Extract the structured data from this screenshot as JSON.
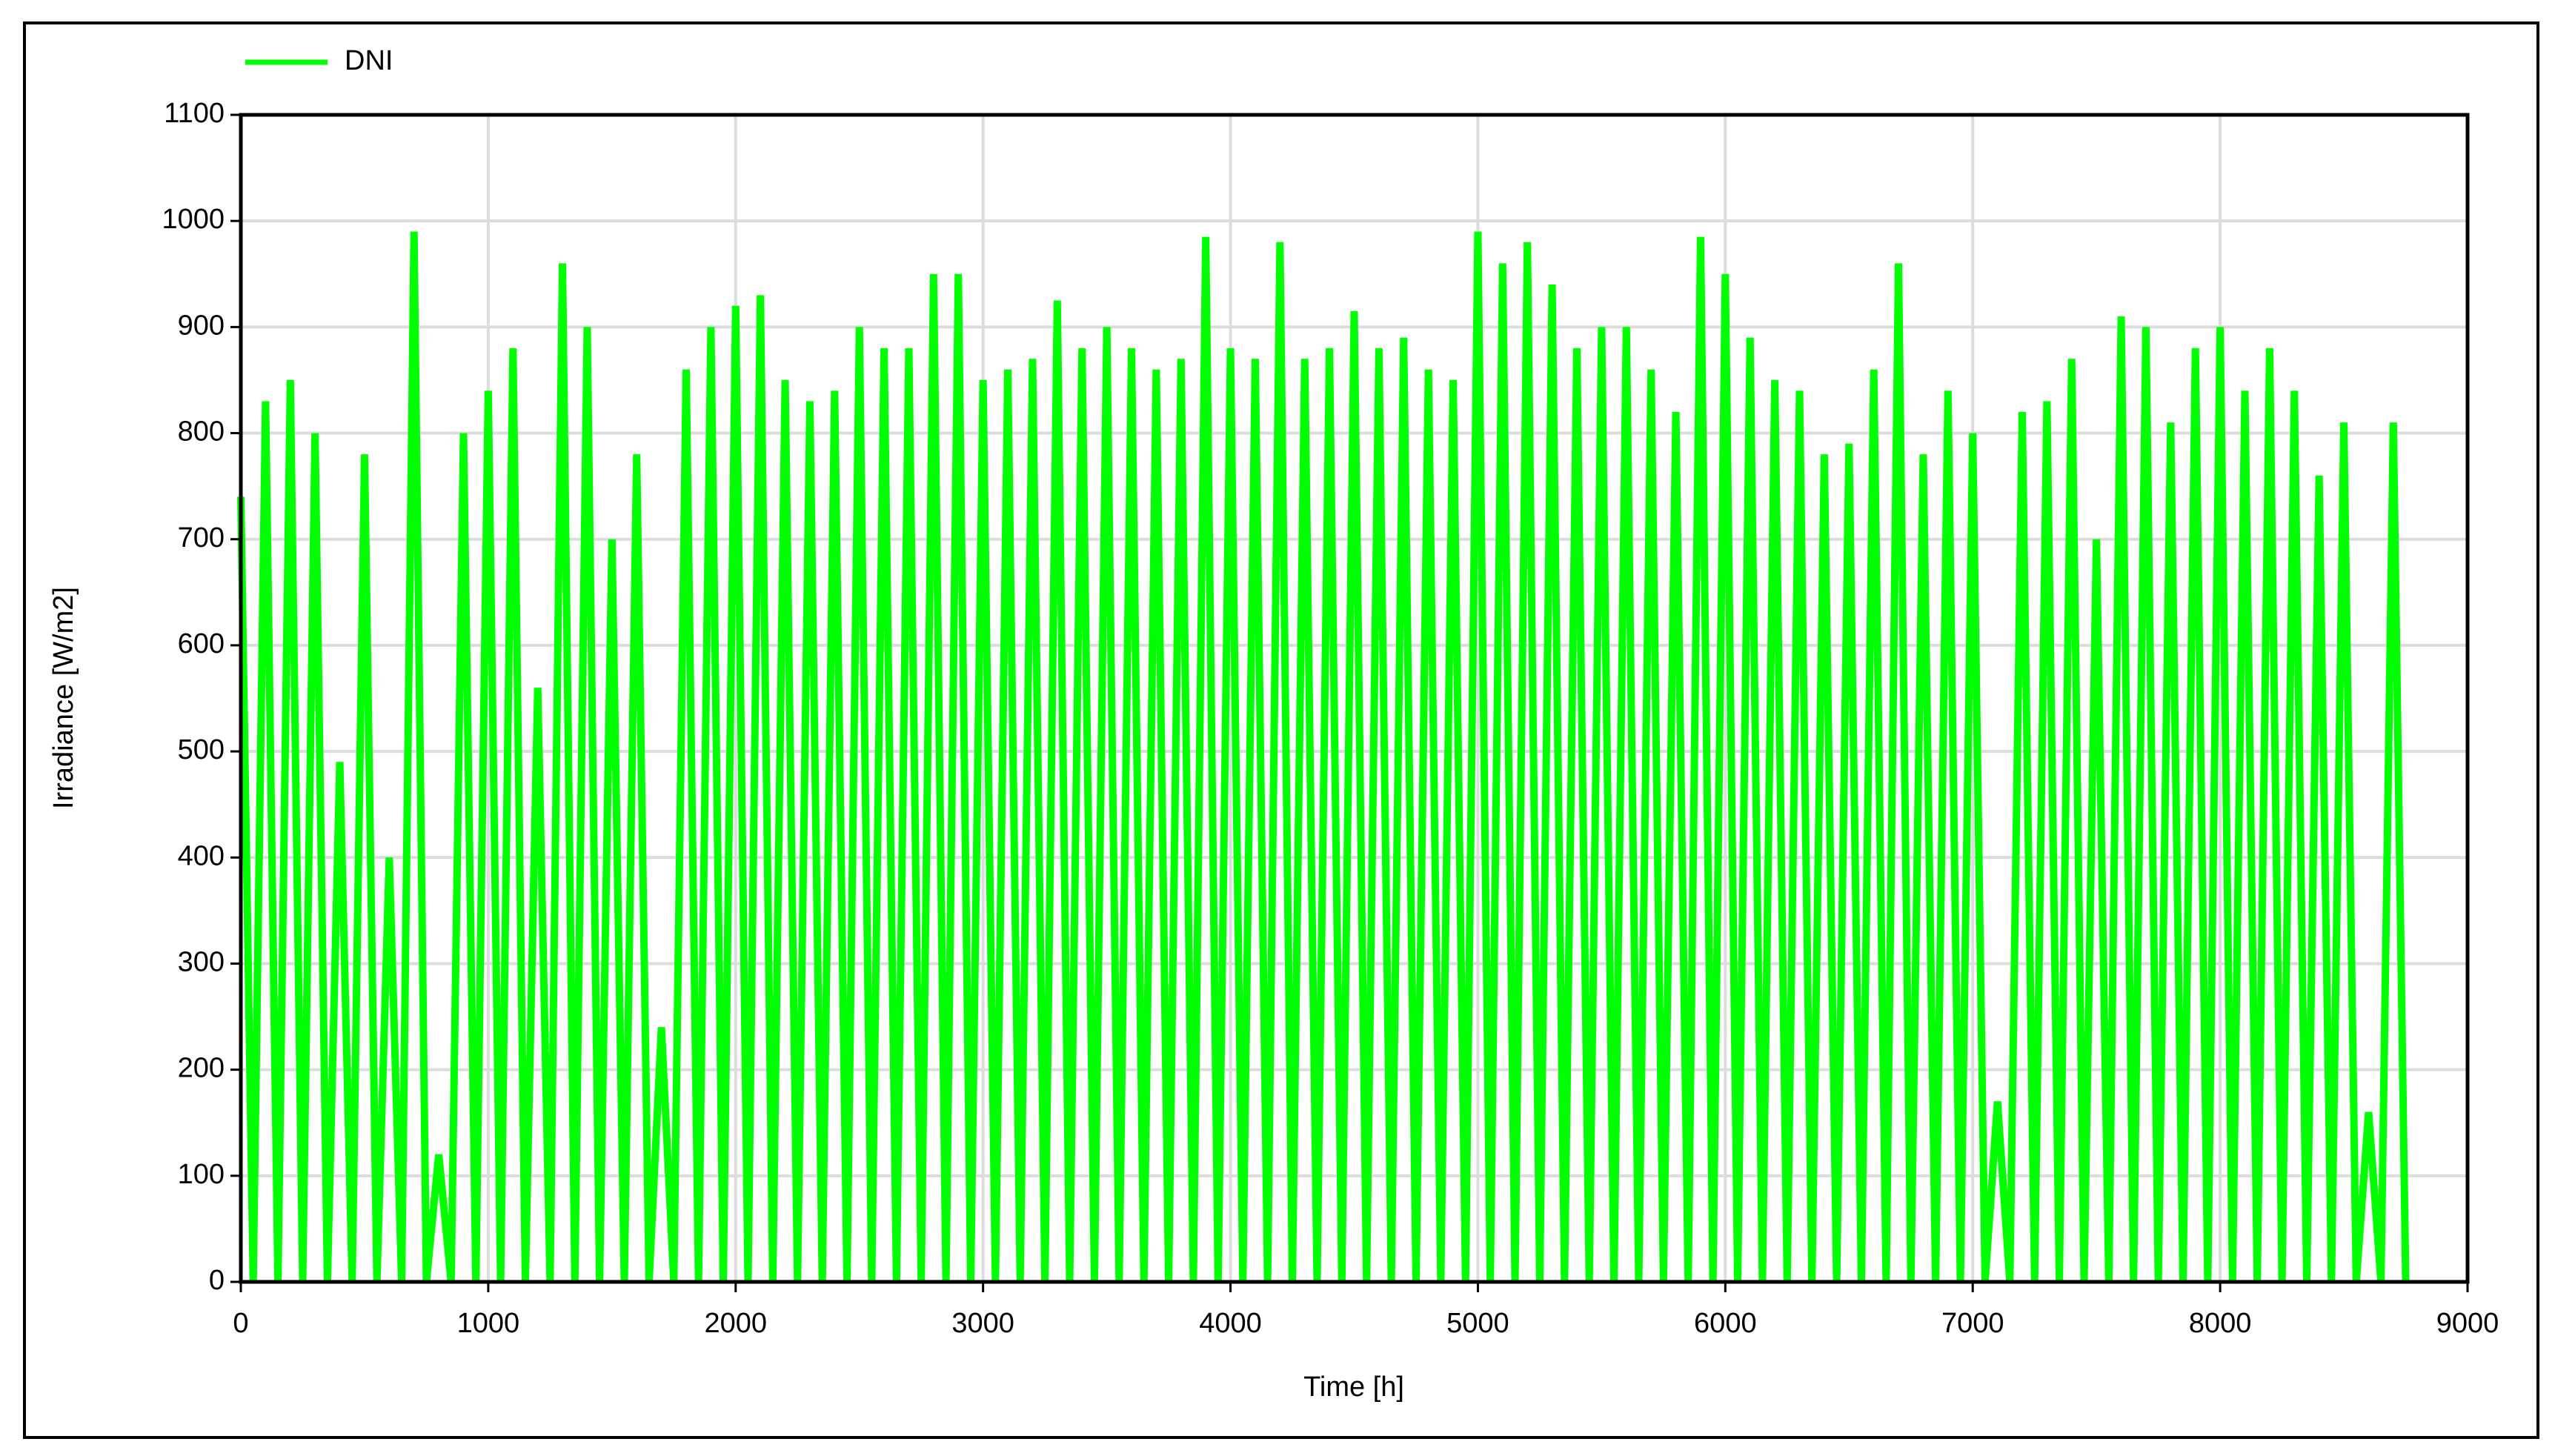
{
  "chart_data": {
    "type": "line",
    "xlabel": "Time [h]",
    "ylabel": "Irradiance [W/m2]",
    "x": [
      0,
      50,
      100,
      150,
      200,
      250,
      300,
      350,
      400,
      450,
      500,
      550,
      600,
      650,
      700,
      750,
      800,
      850,
      900,
      950,
      1000,
      1050,
      1100,
      1150,
      1200,
      1250,
      1300,
      1350,
      1400,
      1450,
      1500,
      1550,
      1600,
      1650,
      1700,
      1750,
      1800,
      1850,
      1900,
      1950,
      2000,
      2050,
      2100,
      2150,
      2200,
      2250,
      2300,
      2350,
      2400,
      2450,
      2500,
      2550,
      2600,
      2650,
      2700,
      2750,
      2800,
      2850,
      2900,
      2950,
      3000,
      3050,
      3100,
      3150,
      3200,
      3250,
      3300,
      3350,
      3400,
      3450,
      3500,
      3550,
      3600,
      3650,
      3700,
      3750,
      3800,
      3850,
      3900,
      3950,
      4000,
      4050,
      4100,
      4150,
      4200,
      4250,
      4300,
      4350,
      4400,
      4450,
      4500,
      4550,
      4600,
      4650,
      4700,
      4750,
      4800,
      4850,
      4900,
      4950,
      5000,
      5050,
      5100,
      5150,
      5200,
      5250,
      5300,
      5350,
      5400,
      5450,
      5500,
      5550,
      5600,
      5650,
      5700,
      5750,
      5800,
      5850,
      5900,
      5950,
      6000,
      6050,
      6100,
      6150,
      6200,
      6250,
      6300,
      6350,
      6400,
      6450,
      6500,
      6550,
      6600,
      6650,
      6700,
      6750,
      6800,
      6850,
      6900,
      6950,
      7000,
      7050,
      7100,
      7150,
      7200,
      7250,
      7300,
      7350,
      7400,
      7450,
      7500,
      7550,
      7600,
      7650,
      7700,
      7750,
      7800,
      7850,
      7900,
      7950,
      8000,
      8050,
      8100,
      8150,
      8200,
      8250,
      8300,
      8350,
      8400,
      8450,
      8500,
      8550,
      8600,
      8650,
      8700,
      8750
    ],
    "series": [
      {
        "name": "DNI",
        "color": "#00ff00",
        "values": [
          740,
          0,
          830,
          0,
          850,
          0,
          800,
          0,
          490,
          0,
          780,
          0,
          400,
          0,
          990,
          0,
          120,
          0,
          800,
          0,
          840,
          0,
          880,
          0,
          560,
          0,
          960,
          0,
          900,
          0,
          700,
          0,
          780,
          0,
          240,
          0,
          860,
          0,
          900,
          0,
          920,
          0,
          930,
          0,
          850,
          0,
          830,
          0,
          840,
          0,
          900,
          0,
          880,
          0,
          880,
          0,
          950,
          0,
          950,
          0,
          850,
          0,
          860,
          0,
          870,
          0,
          925,
          0,
          880,
          0,
          900,
          0,
          880,
          0,
          860,
          0,
          870,
          0,
          985,
          0,
          880,
          0,
          870,
          0,
          980,
          0,
          870,
          0,
          880,
          0,
          915,
          0,
          880,
          0,
          890,
          0,
          860,
          0,
          850,
          0,
          990,
          0,
          960,
          0,
          980,
          0,
          940,
          0,
          880,
          0,
          900,
          0,
          900,
          0,
          860,
          0,
          820,
          0,
          985,
          0,
          950,
          0,
          890,
          0,
          850,
          0,
          840,
          0,
          780,
          0,
          790,
          0,
          860,
          0,
          960,
          0,
          780,
          0,
          840,
          0,
          800,
          0,
          170,
          0,
          820,
          0,
          830,
          0,
          870,
          0,
          700,
          0,
          910,
          0,
          900,
          0,
          810,
          0,
          880,
          0,
          900,
          0,
          840,
          0,
          880,
          0,
          840,
          0,
          760,
          0,
          810,
          0,
          160,
          0,
          810,
          0
        ]
      }
    ],
    "xlim": [
      0,
      9000
    ],
    "xticks": [
      0,
      1000,
      2000,
      3000,
      4000,
      5000,
      6000,
      7000,
      8000,
      9000
    ],
    "ylim": [
      0,
      1100
    ],
    "yticks": [
      0,
      100,
      200,
      300,
      400,
      500,
      600,
      700,
      800,
      900,
      1000,
      1100
    ],
    "grid": true,
    "legend": "top-left"
  }
}
